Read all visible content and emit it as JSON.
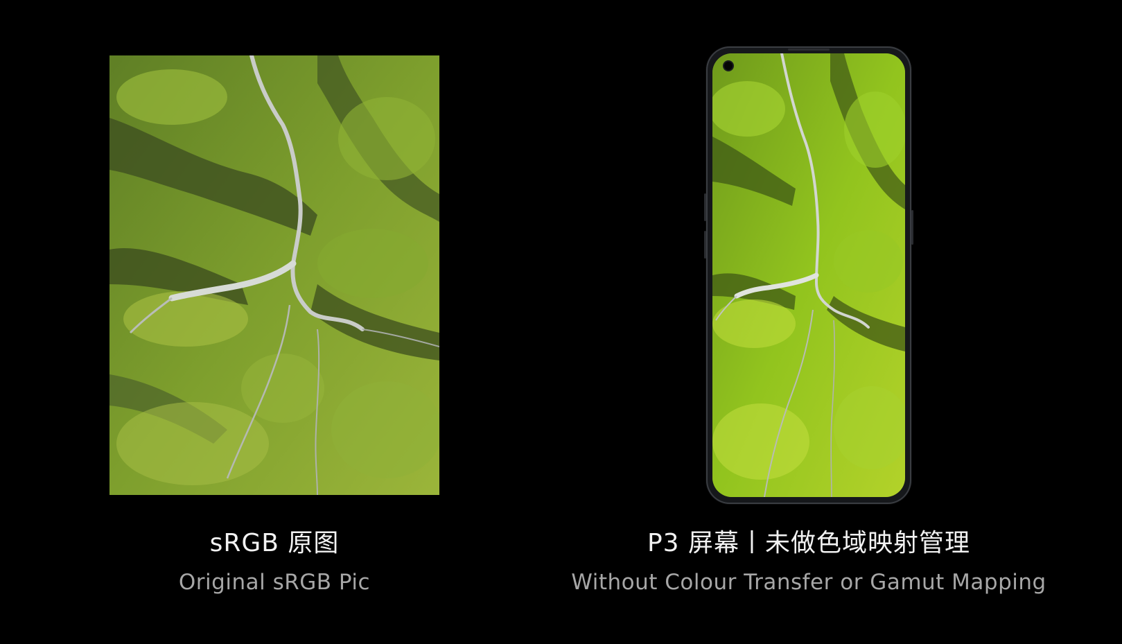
{
  "left_panel": {
    "image_description": "aerial-canyon-photo",
    "title": "sRGB 原图",
    "subtitle": "Original sRGB Pic"
  },
  "right_panel": {
    "image_description": "phone-displaying-aerial-canyon-photo",
    "title": "P3 屏幕丨未做色域映射管理",
    "subtitle": "Without Colour Transfer or Gamut Mapping"
  },
  "colors": {
    "background": "#000000",
    "title_text": "#f2f2f2",
    "subtitle_text": "#a7a7a7",
    "moss_green": "#7fa12b",
    "p3_moss_green": "#9ccc22"
  }
}
